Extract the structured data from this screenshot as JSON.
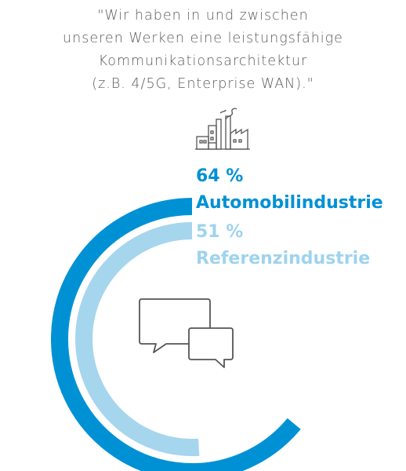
{
  "quote": {
    "lines": [
      "\"Wir haben in und zwischen",
      "unseren Werken eine leistungsfähige",
      "Kommunikationsarchitektur",
      "(z.B. 4/5G, Enterprise WAN).\""
    ]
  },
  "icons": {
    "top": "factory-icon",
    "center": "chat-bubbles-icon"
  },
  "chart_data": {
    "type": "radial-bar",
    "unit": "%",
    "series": [
      {
        "name": "Automobilindustrie",
        "value": 64,
        "display": "64 %",
        "color": "#0091d5"
      },
      {
        "name": "Referenzindustrie",
        "value": 51,
        "display": "51 %",
        "color": "#a6d5ee"
      }
    ],
    "max": 100
  }
}
